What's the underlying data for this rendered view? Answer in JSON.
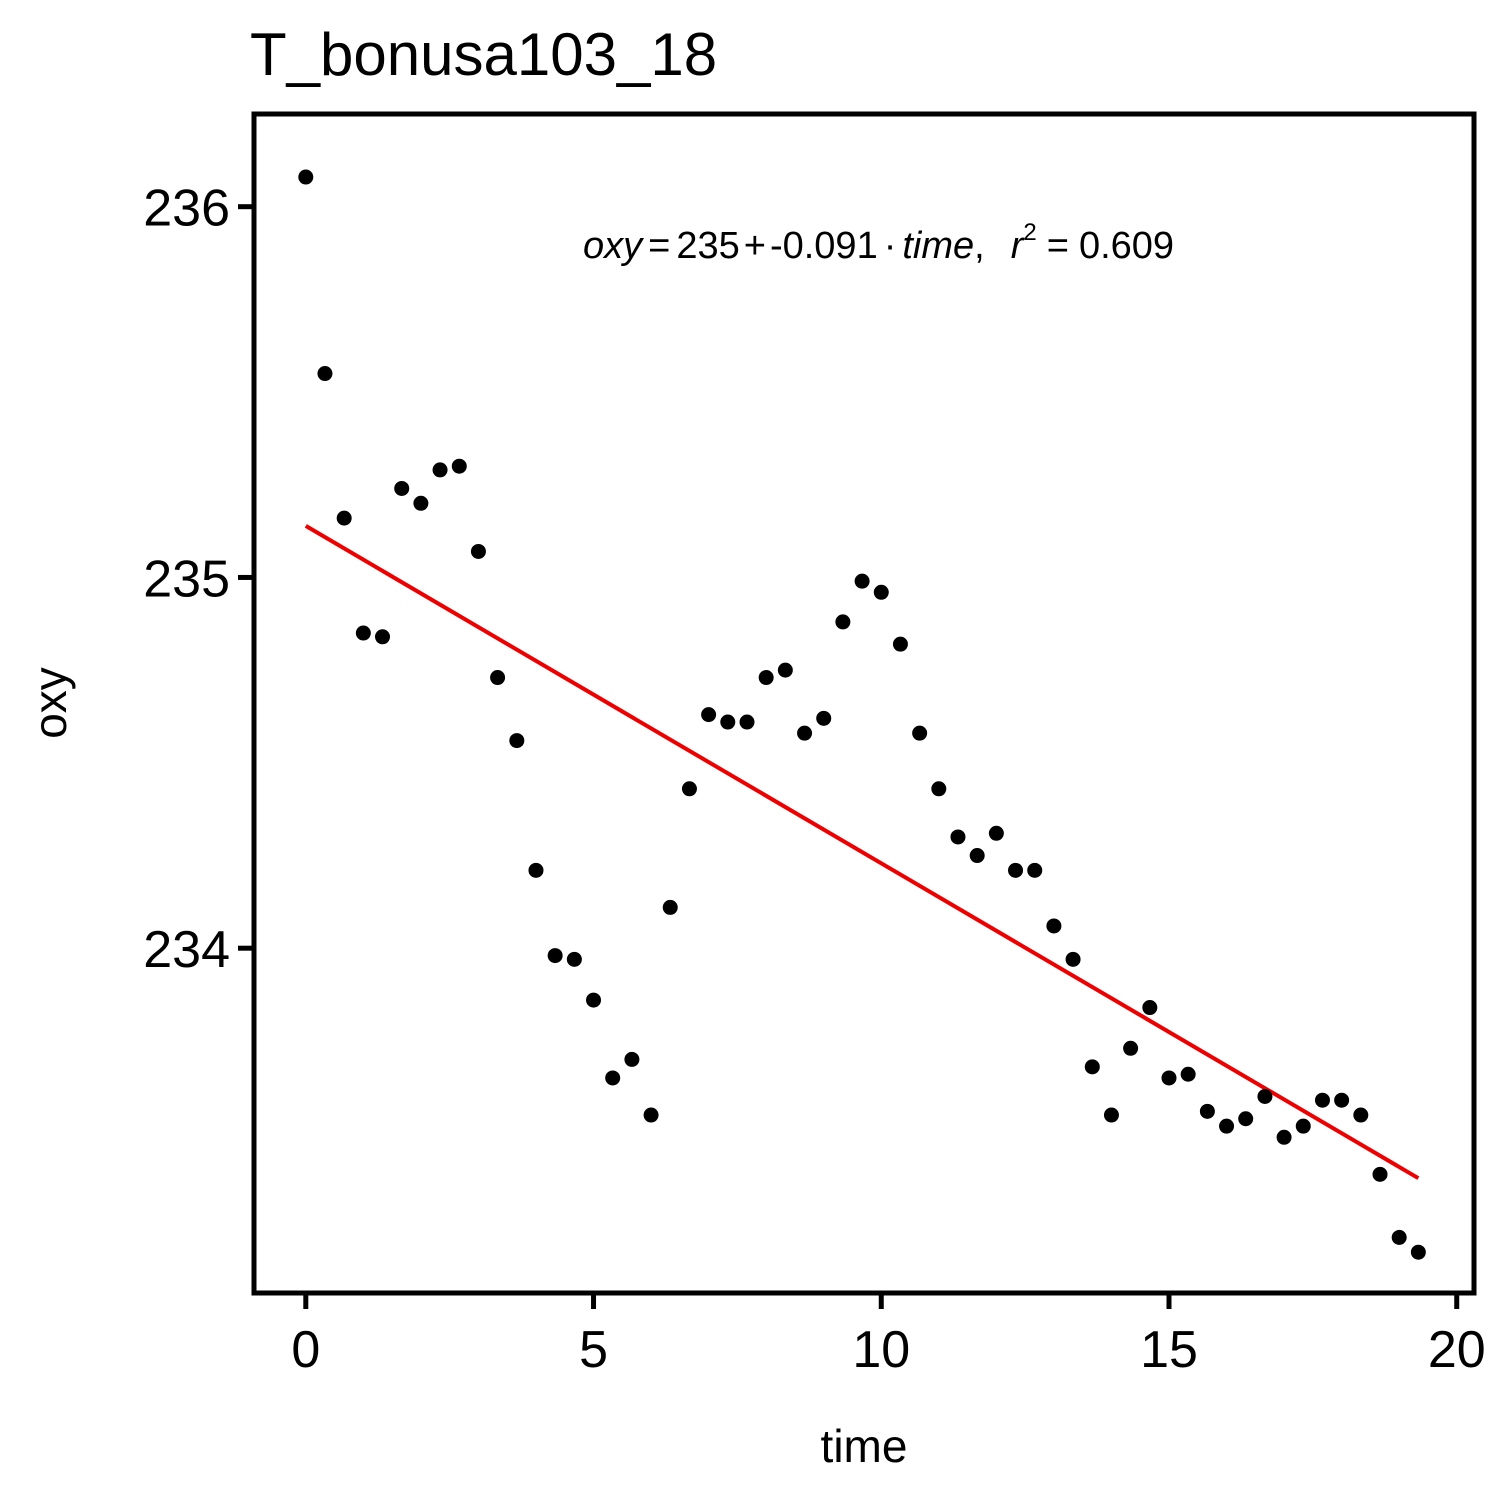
{
  "chart_data": {
    "type": "scatter",
    "title": "T_bonusa103_18",
    "xlabel": "time",
    "ylabel": "oxy",
    "xlim": [
      -0.9,
      20.3
    ],
    "ylim": [
      233.07,
      236.25
    ],
    "xticks": [
      0,
      5,
      10,
      15,
      20
    ],
    "yticks": [
      234,
      235,
      236
    ],
    "grid": false,
    "legend": "none",
    "colors": {
      "points": "#000000",
      "fit": "#ee0000"
    },
    "points": {
      "x": [
        0,
        0.333,
        0.667,
        1,
        1.333,
        1.667,
        2,
        2.333,
        2.667,
        3,
        3.333,
        3.667,
        4,
        4.333,
        4.667,
        5,
        5.333,
        5.667,
        6,
        6.333,
        6.667,
        7,
        7.333,
        7.667,
        8,
        8.333,
        8.667,
        9,
        9.333,
        9.667,
        10,
        10.333,
        10.667,
        11,
        11.333,
        11.667,
        12,
        12.333,
        12.667,
        13,
        13.333,
        13.667,
        14,
        14.333,
        14.667,
        15,
        15.333,
        15.667,
        16,
        16.333,
        16.667,
        17,
        17.333,
        17.667,
        18,
        18.333,
        18.667,
        19,
        19.333
      ],
      "y": [
        236.08,
        235.55,
        235.16,
        234.85,
        234.84,
        235.24,
        235.2,
        235.29,
        235.3,
        235.07,
        234.73,
        234.56,
        234.21,
        233.98,
        233.97,
        233.86,
        233.65,
        233.7,
        233.55,
        234.11,
        234.43,
        234.63,
        234.61,
        234.61,
        234.73,
        234.75,
        234.58,
        234.62,
        234.88,
        234.99,
        234.96,
        234.82,
        234.58,
        234.43,
        234.3,
        234.25,
        234.31,
        234.21,
        234.21,
        234.06,
        233.97,
        233.68,
        233.55,
        233.73,
        233.84,
        233.65,
        233.66,
        233.56,
        233.52,
        233.54,
        233.6,
        233.49,
        233.52,
        233.59,
        233.59,
        233.55,
        233.39,
        233.22,
        233.18
      ]
    },
    "fit": {
      "x_start": 0,
      "x_end": 19.333,
      "intercept": 235.139,
      "slope": -0.091
    },
    "annotation": {
      "lhs": "oxy",
      "eq_sign": "=",
      "intercept_text": "235",
      "plus_sign": "+",
      "slope_text": "-0.091",
      "dot": "·",
      "var": "time",
      "comma": ",",
      "r_symbol": "r",
      "r_exp": "2",
      "r2_eq_sign": "=",
      "r2_text": "0.609"
    }
  }
}
